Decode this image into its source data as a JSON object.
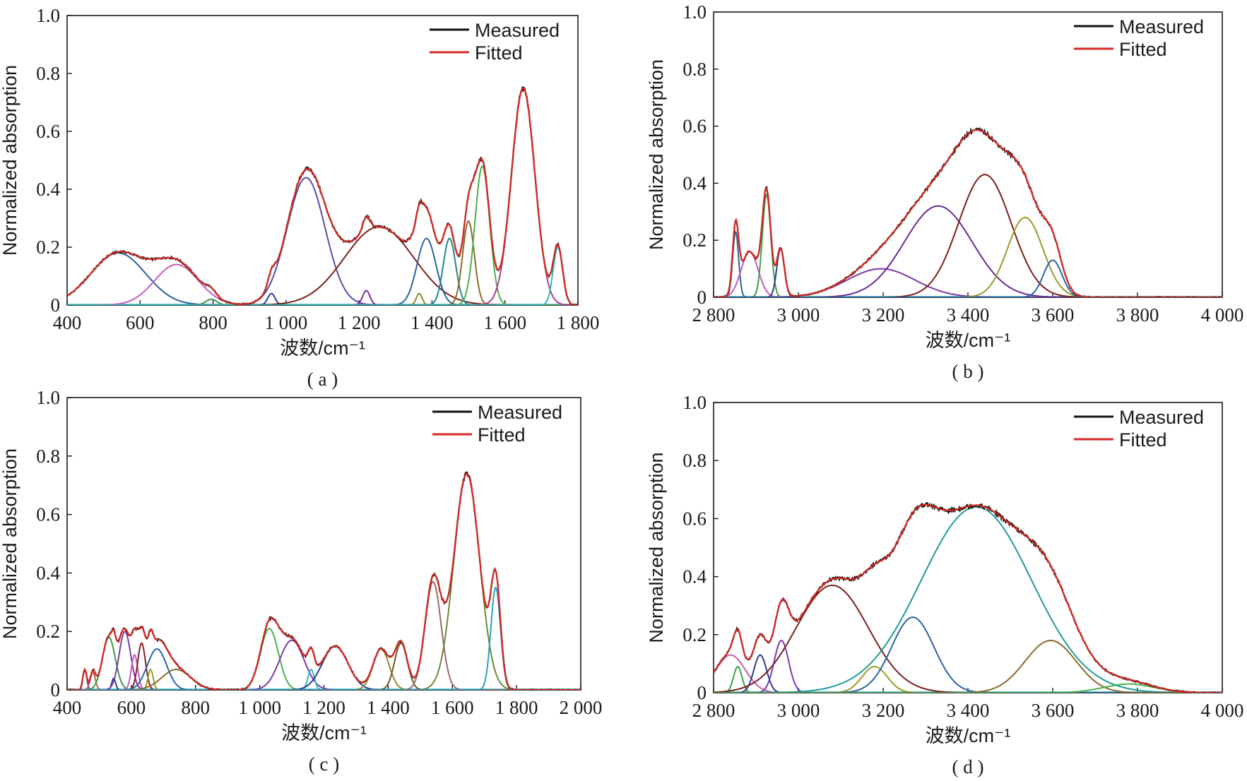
{
  "chart_data": [
    {
      "id": "a",
      "caption": "( a )",
      "type": "line",
      "xlabel": "波数/cm⁻¹",
      "ylabel": "Normalized absorption",
      "xlim": [
        400,
        1800
      ],
      "ylim": [
        0,
        1.0
      ],
      "xticks": [
        400,
        600,
        800,
        1000,
        1200,
        1400,
        1600,
        1800
      ],
      "xtick_labels": [
        "400",
        "600",
        "800",
        "1 000",
        "1 200",
        "1 400",
        "1 600",
        "1 800"
      ],
      "yticks": [
        0,
        0.2,
        0.4,
        0.6,
        0.8,
        1.0
      ],
      "ytick_labels": [
        "0",
        "0.2",
        "0.4",
        "0.6",
        "0.8",
        "1.0"
      ],
      "legend": {
        "position": "top-right",
        "entries": [
          {
            "label": "Measured",
            "color": "#111111"
          },
          {
            "label": "Fitted",
            "color": "#d62a24"
          }
        ]
      },
      "series": [
        {
          "name": "Measured",
          "color": "#111111"
        },
        {
          "name": "Fitted",
          "color": "#d62a24"
        }
      ],
      "components": [
        {
          "center": 540,
          "amplitude": 0.18,
          "width": 75,
          "color": "#2d5d9b"
        },
        {
          "center": 700,
          "amplitude": 0.14,
          "width": 60,
          "color": "#c35cbd"
        },
        {
          "center": 795,
          "amplitude": 0.02,
          "width": 15,
          "color": "#3a9a4a"
        },
        {
          "center": 960,
          "amplitude": 0.04,
          "width": 10,
          "color": "#2b3f8f"
        },
        {
          "center": 1055,
          "amplitude": 0.44,
          "width": 52,
          "color": "#5b4aa8"
        },
        {
          "center": 1255,
          "amplitude": 0.27,
          "width": 95,
          "color": "#7a1e1e"
        },
        {
          "center": 1220,
          "amplitude": 0.05,
          "width": 10,
          "color": "#7a2a95"
        },
        {
          "center": 1365,
          "amplitude": 0.04,
          "width": 8,
          "color": "#8c8a2a"
        },
        {
          "center": 1385,
          "amplitude": 0.23,
          "width": 26,
          "color": "#2a64a0"
        },
        {
          "center": 1448,
          "amplitude": 0.23,
          "width": 17,
          "color": "#1f8a8a"
        },
        {
          "center": 1500,
          "amplitude": 0.29,
          "width": 16,
          "color": "#8a6a2a"
        },
        {
          "center": 1538,
          "amplitude": 0.48,
          "width": 20,
          "color": "#4bb04b"
        },
        {
          "center": 1650,
          "amplitude": 0.75,
          "width": 32,
          "color": "#b03a8a"
        },
        {
          "center": 1745,
          "amplitude": 0.2,
          "width": 13,
          "color": "#2ab8c0"
        }
      ]
    },
    {
      "id": "b",
      "caption": "( b )",
      "type": "line",
      "xlabel": "波数/cm⁻¹",
      "ylabel": "Normalized absorption",
      "xlim": [
        2800,
        4000
      ],
      "ylim": [
        0,
        1.0
      ],
      "xticks": [
        2800,
        3000,
        3200,
        3400,
        3600,
        3800,
        4000
      ],
      "xtick_labels": [
        "2 800",
        "3 000",
        "3 200",
        "3 400",
        "3 600",
        "3 800",
        "4 000"
      ],
      "yticks": [
        0,
        0.2,
        0.4,
        0.6,
        0.8,
        1.0
      ],
      "ytick_labels": [
        "0",
        "0.2",
        "0.4",
        "0.6",
        "0.8",
        "1.0"
      ],
      "legend": {
        "position": "top-right",
        "entries": [
          {
            "label": "Measured",
            "color": "#111111"
          },
          {
            "label": "Fitted",
            "color": "#d62a24"
          }
        ]
      },
      "series": [
        {
          "name": "Measured",
          "color": "#111111"
        },
        {
          "name": "Fitted",
          "color": "#d62a24"
        }
      ],
      "components": [
        {
          "center": 2852,
          "amplitude": 0.23,
          "width": 7,
          "color": "#2a64a0"
        },
        {
          "center": 2885,
          "amplitude": 0.16,
          "width": 20,
          "color": "#c35cbd"
        },
        {
          "center": 2925,
          "amplitude": 0.36,
          "width": 10,
          "color": "#3aa04a"
        },
        {
          "center": 2958,
          "amplitude": 0.17,
          "width": 9,
          "color": "#2b3f8f"
        },
        {
          "center": 3195,
          "amplitude": 0.1,
          "width": 80,
          "color": "#7a3aa8"
        },
        {
          "center": 3330,
          "amplitude": 0.32,
          "width": 80,
          "color": "#6a2a95"
        },
        {
          "center": 3440,
          "amplitude": 0.43,
          "width": 62,
          "color": "#7a1e1e"
        },
        {
          "center": 3535,
          "amplitude": 0.28,
          "width": 42,
          "color": "#9a9a2a"
        },
        {
          "center": 3600,
          "amplitude": 0.13,
          "width": 22,
          "color": "#2a64a0"
        }
      ]
    },
    {
      "id": "c",
      "caption": "( c )",
      "type": "line",
      "xlabel": "波数/cm⁻¹",
      "ylabel": "Normalized absorption",
      "xlim": [
        400,
        2000
      ],
      "ylim": [
        0,
        1.0
      ],
      "xticks": [
        400,
        600,
        800,
        1000,
        1200,
        1400,
        1600,
        1800,
        2000
      ],
      "xtick_labels": [
        "400",
        "600",
        "800",
        "1 000",
        "1 200",
        "1 400",
        "1 600",
        "1 800",
        "2 000"
      ],
      "yticks": [
        0,
        0.2,
        0.4,
        0.6,
        0.8,
        1.0
      ],
      "ytick_labels": [
        "0",
        "0.2",
        "0.4",
        "0.6",
        "0.8",
        "1.0"
      ],
      "legend": {
        "position": "top-right",
        "entries": [
          {
            "label": "Measured",
            "color": "#111111"
          },
          {
            "label": "Fitted",
            "color": "#d62a24"
          }
        ]
      },
      "series": [
        {
          "name": "Measured",
          "color": "#111111"
        },
        {
          "name": "Fitted",
          "color": "#d62a24"
        }
      ],
      "components": [
        {
          "center": 455,
          "amplitude": 0.07,
          "width": 6,
          "color": "#7a3aa8"
        },
        {
          "center": 480,
          "amplitude": 0.06,
          "width": 8,
          "color": "#c35c5c"
        },
        {
          "center": 530,
          "amplitude": 0.18,
          "width": 20,
          "color": "#3a9a4a"
        },
        {
          "center": 545,
          "amplitude": 0.04,
          "width": 6,
          "color": "#2b3f8f"
        },
        {
          "center": 580,
          "amplitude": 0.2,
          "width": 18,
          "color": "#7a3aa8"
        },
        {
          "center": 610,
          "amplitude": 0.12,
          "width": 10,
          "color": "#c35cbd"
        },
        {
          "center": 632,
          "amplitude": 0.16,
          "width": 12,
          "color": "#8a1e2a"
        },
        {
          "center": 660,
          "amplitude": 0.07,
          "width": 8,
          "color": "#9a9a2a"
        },
        {
          "center": 680,
          "amplitude": 0.14,
          "width": 30,
          "color": "#2a64a0"
        },
        {
          "center": 740,
          "amplitude": 0.07,
          "width": 45,
          "color": "#8a6a2a"
        },
        {
          "center": 1030,
          "amplitude": 0.21,
          "width": 28,
          "color": "#4bb04b"
        },
        {
          "center": 1100,
          "amplitude": 0.17,
          "width": 38,
          "color": "#7a3aa8"
        },
        {
          "center": 1160,
          "amplitude": 0.07,
          "width": 10,
          "color": "#2ab8c0"
        },
        {
          "center": 1235,
          "amplitude": 0.15,
          "width": 40,
          "color": "#2b3f8f"
        },
        {
          "center": 1378,
          "amplitude": 0.14,
          "width": 25,
          "color": "#8a8a2a"
        },
        {
          "center": 1440,
          "amplitude": 0.16,
          "width": 20,
          "color": "#6a5a2a"
        },
        {
          "center": 1540,
          "amplitude": 0.37,
          "width": 25,
          "color": "#9a6a6a"
        },
        {
          "center": 1645,
          "amplitude": 0.74,
          "width": 40,
          "color": "#6a8a3a"
        },
        {
          "center": 1735,
          "amplitude": 0.35,
          "width": 15,
          "color": "#2aa0c8"
        }
      ]
    },
    {
      "id": "d",
      "caption": "( d )",
      "type": "line",
      "xlabel": "波数/cm⁻¹",
      "ylabel": "Normalized absorption",
      "xlim": [
        2800,
        4000
      ],
      "ylim": [
        0,
        1.0
      ],
      "xticks": [
        2800,
        3000,
        3200,
        3400,
        3600,
        3800,
        4000
      ],
      "xtick_labels": [
        "2 800",
        "3 000",
        "3 200",
        "3 400",
        "3 600",
        "3 800",
        "4 000"
      ],
      "yticks": [
        0,
        0.2,
        0.4,
        0.6,
        0.8,
        1.0
      ],
      "ytick_labels": [
        "0",
        "0.2",
        "0.4",
        "0.6",
        "0.8",
        "1.0"
      ],
      "legend": {
        "position": "top-right",
        "entries": [
          {
            "label": "Measured",
            "color": "#111111"
          },
          {
            "label": "Fitted",
            "color": "#d62a24"
          }
        ]
      },
      "series": [
        {
          "name": "Measured",
          "color": "#111111"
        },
        {
          "name": "Fitted",
          "color": "#d62a24"
        }
      ],
      "components": [
        {
          "center": 2840,
          "amplitude": 0.13,
          "width": 35,
          "color": "#c35cbd"
        },
        {
          "center": 2857,
          "amplitude": 0.09,
          "width": 10,
          "color": "#3aa04a"
        },
        {
          "center": 2910,
          "amplitude": 0.13,
          "width": 15,
          "color": "#2b3f8f"
        },
        {
          "center": 2960,
          "amplitude": 0.18,
          "width": 17,
          "color": "#7a3aa8"
        },
        {
          "center": 3080,
          "amplitude": 0.37,
          "width": 85,
          "color": "#7a1e1e"
        },
        {
          "center": 3180,
          "amplitude": 0.09,
          "width": 30,
          "color": "#9a9a2a"
        },
        {
          "center": 3270,
          "amplitude": 0.26,
          "width": 50,
          "color": "#2a64a0"
        },
        {
          "center": 3420,
          "amplitude": 0.64,
          "width": 130,
          "color": "#1f9a9a"
        },
        {
          "center": 3595,
          "amplitude": 0.18,
          "width": 60,
          "color": "#8a6a2a"
        },
        {
          "center": 3780,
          "amplitude": 0.03,
          "width": 60,
          "color": "#4bb04b"
        }
      ]
    }
  ]
}
